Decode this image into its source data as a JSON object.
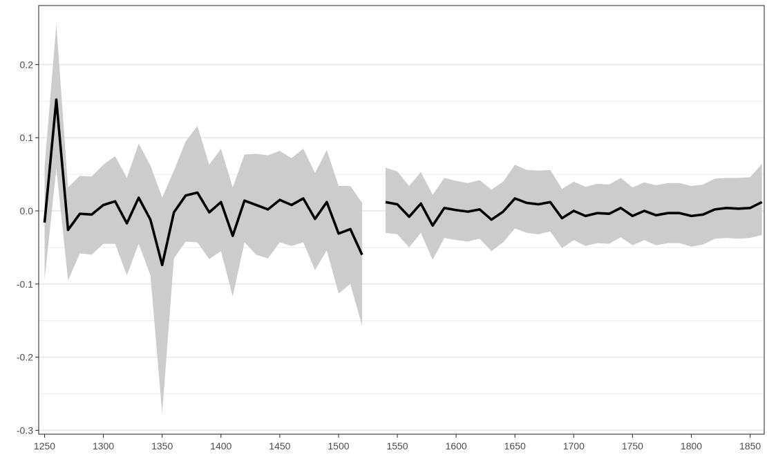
{
  "chart_data": {
    "type": "line",
    "title": "",
    "xlabel": "",
    "ylabel": "",
    "xlim": [
      1245,
      1862
    ],
    "ylim": [
      -0.3,
      0.2
    ],
    "x_ticks": [
      1250,
      1300,
      1350,
      1400,
      1450,
      1500,
      1550,
      1600,
      1650,
      1700,
      1750,
      1800,
      1850
    ],
    "y_ticks": [
      0.2,
      0.1,
      0.0,
      -0.1,
      -0.2,
      -0.3
    ],
    "y_tick_labels": [
      "0.2",
      "0.1",
      "0.0",
      "-0.1",
      "-0.2",
      "-0.3"
    ],
    "grid": "horizontal",
    "colors": {
      "line": "#000000",
      "band": "#cccccc",
      "grid": "#ebebeb",
      "border": "#333333"
    },
    "series": [
      {
        "points": [
          [
            1250,
            -0.016,
            -0.095,
            0.06
          ],
          [
            1260,
            0.152,
            0.058,
            0.255
          ],
          [
            1270,
            -0.026,
            -0.095,
            0.032
          ],
          [
            1280,
            -0.004,
            -0.058,
            0.048
          ],
          [
            1290,
            -0.005,
            -0.06,
            0.047
          ],
          [
            1300,
            0.008,
            -0.045,
            0.063
          ],
          [
            1310,
            0.013,
            -0.045,
            0.075
          ],
          [
            1320,
            -0.017,
            -0.088,
            0.045
          ],
          [
            1330,
            0.018,
            -0.045,
            0.092
          ],
          [
            1340,
            -0.012,
            -0.088,
            0.062
          ],
          [
            1350,
            -0.074,
            -0.277,
            0.018
          ],
          [
            1360,
            -0.002,
            -0.065,
            0.055
          ],
          [
            1370,
            0.021,
            -0.042,
            0.095
          ],
          [
            1380,
            0.025,
            -0.043,
            0.116
          ],
          [
            1390,
            -0.002,
            -0.066,
            0.063
          ],
          [
            1400,
            0.012,
            -0.055,
            0.085
          ],
          [
            1410,
            -0.034,
            -0.117,
            0.032
          ],
          [
            1420,
            0.014,
            -0.043,
            0.077
          ],
          [
            1430,
            0.008,
            -0.06,
            0.078
          ],
          [
            1440,
            0.002,
            -0.065,
            0.076
          ],
          [
            1450,
            0.015,
            -0.043,
            0.082
          ],
          [
            1460,
            0.008,
            -0.048,
            0.072
          ],
          [
            1470,
            0.017,
            -0.043,
            0.085
          ],
          [
            1480,
            -0.011,
            -0.081,
            0.052
          ],
          [
            1490,
            0.012,
            -0.054,
            0.083
          ],
          [
            1500,
            -0.031,
            -0.113,
            0.034
          ],
          [
            1510,
            -0.025,
            -0.1,
            0.034
          ],
          [
            1520,
            -0.06,
            -0.157,
            0.011
          ],
          [
            1540,
            0.012,
            -0.03,
            0.059
          ],
          [
            1550,
            0.009,
            -0.032,
            0.054
          ],
          [
            1560,
            -0.008,
            -0.05,
            0.034
          ],
          [
            1570,
            0.01,
            -0.03,
            0.053
          ],
          [
            1580,
            -0.02,
            -0.067,
            0.022
          ],
          [
            1590,
            0.004,
            -0.037,
            0.045
          ],
          [
            1600,
            0.001,
            -0.04,
            0.041
          ],
          [
            1610,
            -0.001,
            -0.042,
            0.038
          ],
          [
            1620,
            0.002,
            -0.038,
            0.042
          ],
          [
            1630,
            -0.012,
            -0.055,
            0.029
          ],
          [
            1640,
            -0.001,
            -0.043,
            0.04
          ],
          [
            1650,
            0.017,
            -0.024,
            0.063
          ],
          [
            1660,
            0.011,
            -0.03,
            0.056
          ],
          [
            1670,
            0.009,
            -0.032,
            0.055
          ],
          [
            1680,
            0.012,
            -0.028,
            0.056
          ],
          [
            1690,
            -0.01,
            -0.051,
            0.03
          ],
          [
            1700,
            0.0,
            -0.04,
            0.04
          ],
          [
            1710,
            -0.007,
            -0.048,
            0.033
          ],
          [
            1720,
            -0.003,
            -0.044,
            0.037
          ],
          [
            1730,
            -0.004,
            -0.045,
            0.036
          ],
          [
            1740,
            0.004,
            -0.036,
            0.045
          ],
          [
            1750,
            -0.007,
            -0.047,
            0.032
          ],
          [
            1760,
            0.0,
            -0.04,
            0.039
          ],
          [
            1770,
            -0.006,
            -0.047,
            0.035
          ],
          [
            1780,
            -0.003,
            -0.044,
            0.038
          ],
          [
            1790,
            -0.003,
            -0.044,
            0.038
          ],
          [
            1800,
            -0.007,
            -0.049,
            0.034
          ],
          [
            1810,
            -0.005,
            -0.046,
            0.036
          ],
          [
            1820,
            0.002,
            -0.038,
            0.044
          ],
          [
            1830,
            0.004,
            -0.037,
            0.045
          ],
          [
            1840,
            0.003,
            -0.038,
            0.045
          ],
          [
            1850,
            0.004,
            -0.037,
            0.046
          ],
          [
            1860,
            0.012,
            -0.033,
            0.064
          ]
        ],
        "gaps_after": [
          1520
        ]
      }
    ]
  }
}
